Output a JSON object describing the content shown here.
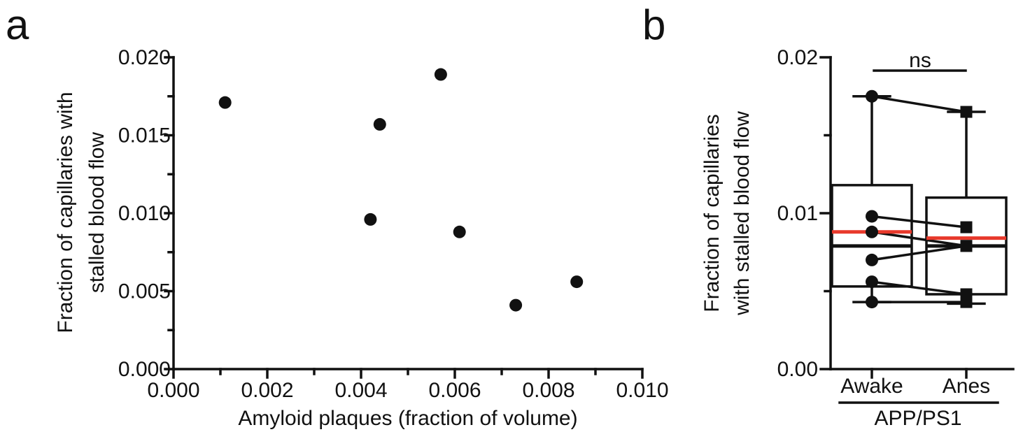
{
  "chart_data": [
    {
      "panel_label": "a",
      "type": "scatter",
      "xlabel": "Amyloid plaques (fraction of volume)",
      "ylabel_lines": [
        "Fraction of capillaries with",
        "stalled blood flow"
      ],
      "xlim": [
        0.0,
        0.01
      ],
      "ylim": [
        0.0,
        0.02
      ],
      "xticks": [
        "0.000",
        "0.002",
        "0.004",
        "0.006",
        "0.008",
        "0.010"
      ],
      "yticks": [
        "0.000",
        "0.005",
        "0.010",
        "0.015",
        "0.020"
      ],
      "points": [
        {
          "x": 0.0011,
          "y": 0.0171
        },
        {
          "x": 0.0042,
          "y": 0.0096
        },
        {
          "x": 0.0044,
          "y": 0.0157
        },
        {
          "x": 0.0057,
          "y": 0.0189
        },
        {
          "x": 0.0061,
          "y": 0.0088
        },
        {
          "x": 0.0073,
          "y": 0.0041
        },
        {
          "x": 0.0086,
          "y": 0.0056
        }
      ]
    },
    {
      "panel_label": "b",
      "type": "box",
      "ylabel_lines": [
        "Fraction of capillaries",
        "with stalled blood flow"
      ],
      "ylim": [
        0.0,
        0.02
      ],
      "yticks": [
        "0.00",
        "0.01",
        "0.02"
      ],
      "categories": [
        "Awake",
        "Anes"
      ],
      "group_label": "APP/PS1",
      "significance": "ns",
      "median_color": "#111111",
      "mean_color": "#e8392b",
      "boxes": [
        {
          "name": "Awake",
          "min": 0.0043,
          "q1": 0.0053,
          "median": 0.0079,
          "mean": 0.0088,
          "q3": 0.0118,
          "max": 0.0175
        },
        {
          "name": "Anes",
          "min": 0.0042,
          "q1": 0.0048,
          "median": 0.0079,
          "mean": 0.0084,
          "q3": 0.011,
          "max": 0.0165
        }
      ],
      "pairs": [
        [
          0.0175,
          0.0165
        ],
        [
          0.0098,
          0.0091
        ],
        [
          0.0088,
          0.0079
        ],
        [
          0.007,
          0.0079
        ],
        [
          0.0056,
          0.0048
        ],
        [
          0.0043,
          0.0043
        ]
      ]
    }
  ]
}
